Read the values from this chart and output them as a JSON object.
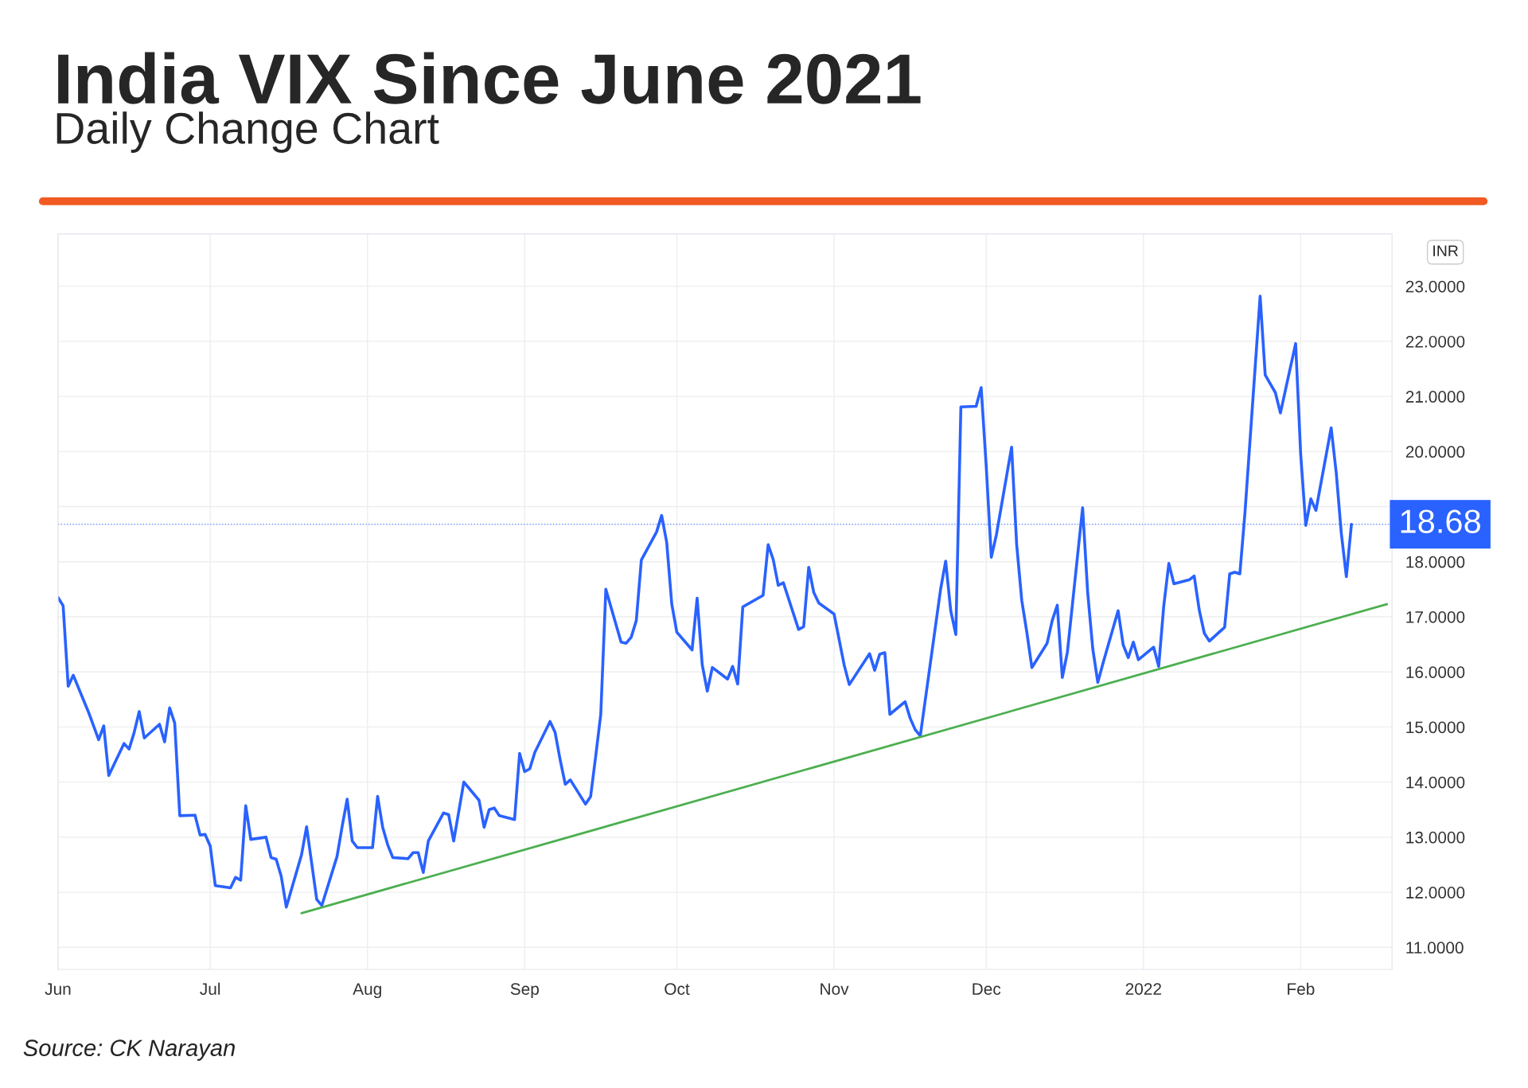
{
  "chart_data": {
    "type": "line",
    "title": "India VIX Since June 2021",
    "subtitle": "Daily Change Chart",
    "annotations": [
      "Source: CK Narayan",
      "INR"
    ],
    "series": [
      {
        "color": "#2962ff",
        "x": [
          "2021-06-01",
          "2021-06-02",
          "2021-06-03",
          "2021-06-04",
          "2021-06-07",
          "2021-06-09",
          "2021-06-10",
          "2021-06-11",
          "2021-06-14",
          "2021-06-15",
          "2021-06-16",
          "2021-06-17",
          "2021-06-18",
          "2021-06-21",
          "2021-06-22",
          "2021-06-23",
          "2021-06-24",
          "2021-06-25",
          "2021-06-28",
          "2021-06-29",
          "2021-06-30",
          "2021-07-01",
          "2021-07-02",
          "2021-07-05",
          "2021-07-06",
          "2021-07-07",
          "2021-07-08",
          "2021-07-09",
          "2021-07-12",
          "2021-07-13",
          "2021-07-14",
          "2021-07-15",
          "2021-07-16",
          "2021-07-19",
          "2021-07-20",
          "2021-07-22",
          "2021-07-23",
          "2021-07-26",
          "2021-07-27",
          "2021-07-28",
          "2021-07-29",
          "2021-07-30",
          "2021-08-02",
          "2021-08-03",
          "2021-08-04",
          "2021-08-05",
          "2021-08-06",
          "2021-08-09",
          "2021-08-10",
          "2021-08-11",
          "2021-08-12",
          "2021-08-13",
          "2021-08-16",
          "2021-08-17",
          "2021-08-18",
          "2021-08-20",
          "2021-08-23",
          "2021-08-24",
          "2021-08-25",
          "2021-08-26",
          "2021-08-27",
          "2021-08-30",
          "2021-08-31",
          "2021-09-01",
          "2021-09-02",
          "2021-09-03",
          "2021-09-06",
          "2021-09-07",
          "2021-09-08",
          "2021-09-09",
          "2021-09-10",
          "2021-09-13",
          "2021-09-14",
          "2021-09-15",
          "2021-09-16",
          "2021-09-17",
          "2021-09-20",
          "2021-09-21",
          "2021-09-22",
          "2021-09-23",
          "2021-09-24",
          "2021-09-27",
          "2021-09-28",
          "2021-09-29",
          "2021-09-30",
          "2021-10-01",
          "2021-10-04",
          "2021-10-05",
          "2021-10-06",
          "2021-10-07",
          "2021-10-08",
          "2021-10-11",
          "2021-10-12",
          "2021-10-13",
          "2021-10-14",
          "2021-10-18",
          "2021-10-19",
          "2021-10-20",
          "2021-10-21",
          "2021-10-22",
          "2021-10-25",
          "2021-10-26",
          "2021-10-27",
          "2021-10-28",
          "2021-10-29",
          "2021-11-01",
          "2021-11-03",
          "2021-11-04",
          "2021-11-08",
          "2021-11-09",
          "2021-11-10",
          "2021-11-11",
          "2021-11-12",
          "2021-11-15",
          "2021-11-16",
          "2021-11-17",
          "2021-11-18",
          "2021-11-22",
          "2021-11-23",
          "2021-11-24",
          "2021-11-25",
          "2021-11-26",
          "2021-11-29",
          "2021-11-30",
          "2021-12-01",
          "2021-12-02",
          "2021-12-03",
          "2021-12-06",
          "2021-12-07",
          "2021-12-08",
          "2021-12-09",
          "2021-12-10",
          "2021-12-13",
          "2021-12-14",
          "2021-12-15",
          "2021-12-16",
          "2021-12-17",
          "2021-12-20",
          "2021-12-21",
          "2021-12-22",
          "2021-12-23",
          "2021-12-24",
          "2021-12-27",
          "2021-12-28",
          "2021-12-29",
          "2021-12-30",
          "2021-12-31",
          "2022-01-03",
          "2022-01-04",
          "2022-01-05",
          "2022-01-06",
          "2022-01-07",
          "2022-01-10",
          "2022-01-11",
          "2022-01-12",
          "2022-01-13",
          "2022-01-14",
          "2022-01-17",
          "2022-01-18",
          "2022-01-19",
          "2022-01-20",
          "2022-01-21",
          "2022-01-24",
          "2022-01-25",
          "2022-01-27",
          "2022-01-28",
          "2022-01-31",
          "2022-02-01",
          "2022-02-02",
          "2022-02-03",
          "2022-02-04",
          "2022-02-07",
          "2022-02-08",
          "2022-02-09",
          "2022-02-10",
          "2022-02-11"
        ],
        "values": [
          17.35,
          17.2,
          15.74,
          15.94,
          15.27,
          14.77,
          15.02,
          14.12,
          14.7,
          14.6,
          14.9,
          15.28,
          14.8,
          15.05,
          14.73,
          15.35,
          15.07,
          13.39,
          13.4,
          13.04,
          13.05,
          12.84,
          12.12,
          12.08,
          12.27,
          12.22,
          13.57,
          12.96,
          13.0,
          12.63,
          12.6,
          12.29,
          11.73,
          12.68,
          13.19,
          11.87,
          11.76,
          12.65,
          13.19,
          13.69,
          12.93,
          12.81,
          12.81,
          13.74,
          13.18,
          12.86,
          12.63,
          12.61,
          12.72,
          12.72,
          12.36,
          12.93,
          13.44,
          13.41,
          12.93,
          14.0,
          13.67,
          13.18,
          13.5,
          13.53,
          13.39,
          13.32,
          14.52,
          14.19,
          14.24,
          14.54,
          15.1,
          14.9,
          14.4,
          13.96,
          14.04,
          13.6,
          13.74,
          14.47,
          15.23,
          17.5,
          16.54,
          16.52,
          16.63,
          16.93,
          18.03,
          18.54,
          18.84,
          18.35,
          17.23,
          16.72,
          16.4,
          17.34,
          16.13,
          15.65,
          16.08,
          15.87,
          16.1,
          15.78,
          17.18,
          17.39,
          18.31,
          18.04,
          17.57,
          17.62,
          16.77,
          16.82,
          17.9,
          17.44,
          17.25,
          17.05,
          16.12,
          15.77,
          16.33,
          16.03,
          16.32,
          16.35,
          15.23,
          15.46,
          15.16,
          14.95,
          14.84,
          17.5,
          18.01,
          17.11,
          16.68,
          20.81,
          20.82,
          21.16,
          19.73,
          18.08,
          18.49,
          20.08,
          18.31,
          17.3,
          16.72,
          16.08,
          16.52,
          16.93,
          17.21,
          15.9,
          16.36,
          18.98,
          17.44,
          16.42,
          15.81,
          16.15,
          17.11,
          16.49,
          16.26,
          16.54,
          16.22,
          16.45,
          16.1,
          17.2,
          17.97,
          17.6,
          17.67,
          17.74,
          17.12,
          16.7,
          16.56,
          16.81,
          17.78,
          17.81,
          17.78,
          18.88,
          22.82,
          21.39,
          21.07,
          20.7,
          21.96,
          19.94,
          18.66,
          19.14,
          18.93,
          20.43,
          19.62,
          18.52,
          17.73,
          18.68
        ]
      },
      {
        "color": "#4caf50",
        "x": [
          "2021-07-19",
          "2022-02-18"
        ],
        "values": [
          11.62,
          17.23
        ]
      }
    ],
    "ref_lines": [
      {
        "axis": "y",
        "value": 18.68,
        "label": "18.68",
        "color": "#2962ff",
        "line_style": "dotted"
      }
    ],
    "xlim": [
      "2021-06-01",
      "2022-02-19"
    ],
    "xticks": [
      {
        "value": "2021-06-01",
        "label": "Jun"
      },
      {
        "value": "2021-07-01",
        "label": "Jul"
      },
      {
        "value": "2021-08-01",
        "label": "Aug"
      },
      {
        "value": "2021-09-01",
        "label": "Sep"
      },
      {
        "value": "2021-10-01",
        "label": "Oct"
      },
      {
        "value": "2021-11-01",
        "label": "Nov"
      },
      {
        "value": "2021-12-01",
        "label": "Dec"
      },
      {
        "value": "2022-01-01",
        "label": "2022"
      },
      {
        "value": "2022-02-01",
        "label": "Feb"
      }
    ],
    "ylim": [
      10.6,
      23.95
    ],
    "yticks": [
      {
        "value": 11,
        "label": "11.0000"
      },
      {
        "value": 12,
        "label": "12.0000"
      },
      {
        "value": 13,
        "label": "13.0000"
      },
      {
        "value": 14,
        "label": "14.0000"
      },
      {
        "value": 15,
        "label": "15.0000"
      },
      {
        "value": 16,
        "label": "16.0000"
      },
      {
        "value": 17,
        "label": "17.0000"
      },
      {
        "value": 18,
        "label": "18.0000"
      },
      {
        "value": 19,
        "label": null
      },
      {
        "value": 20,
        "label": "20.0000"
      },
      {
        "value": 21,
        "label": "21.0000"
      },
      {
        "value": 22,
        "label": "22.0000"
      },
      {
        "value": 23,
        "label": "23.0000"
      }
    ],
    "grid": true,
    "legend": false,
    "marker": "none",
    "line_style": "solid"
  }
}
